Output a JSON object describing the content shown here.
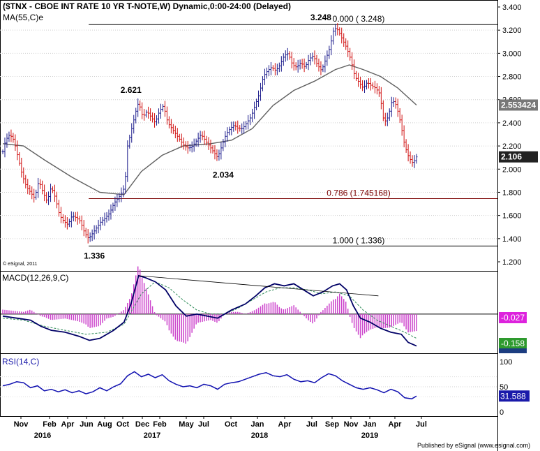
{
  "header": {
    "title": "($TNX - CBOE INT RATE 10 YR T-NOTE,W) Dynamic,0:00-24:00 (Delayed)",
    "ma_label": "MA(55,C)e",
    "copyright": "© eSignal, 2011",
    "publisher": "Published by eSignal (www.esignal.com)"
  },
  "colors": {
    "up_bar": "#1c1c8c",
    "down_bar": "#d01010",
    "ma_line": "#606060",
    "macd_line": "#000066",
    "signal_line": "#2e8b57",
    "histogram": "#cc44cc",
    "rsi_line": "#1010b0",
    "fib_line": "#7a0000",
    "price_box": "#222222",
    "macd_box": "#dd22dd",
    "signal_box": "#2e9a2e",
    "rsi_box": "#1a1aaa"
  },
  "chart_data": [
    {
      "type": "candlestick",
      "panel": "price",
      "ylim": [
        1.2,
        3.4
      ],
      "yticks": [
        "3.400",
        "3.200",
        "3.000",
        "2.800",
        "2.600",
        "2.400",
        "2.200",
        "2.000",
        "1.800",
        "1.600",
        "1.400",
        "1.200"
      ],
      "close_series": [
        [
          0,
          2.15
        ],
        [
          4,
          2.25
        ],
        [
          10,
          2.3
        ],
        [
          16,
          2.25
        ],
        [
          22,
          2.1
        ],
        [
          28,
          1.95
        ],
        [
          34,
          1.85
        ],
        [
          40,
          1.8
        ],
        [
          46,
          1.75
        ],
        [
          52,
          1.9
        ],
        [
          58,
          1.8
        ],
        [
          64,
          1.72
        ],
        [
          70,
          1.85
        ],
        [
          76,
          1.75
        ],
        [
          82,
          1.6
        ],
        [
          88,
          1.55
        ],
        [
          94,
          1.52
        ],
        [
          100,
          1.6
        ],
        [
          106,
          1.58
        ],
        [
          112,
          1.55
        ],
        [
          118,
          1.45
        ],
        [
          124,
          1.4
        ],
        [
          130,
          1.45
        ],
        [
          136,
          1.5
        ],
        [
          142,
          1.55
        ],
        [
          148,
          1.58
        ],
        [
          154,
          1.62
        ],
        [
          160,
          1.7
        ],
        [
          166,
          1.75
        ],
        [
          170,
          1.78
        ],
        [
          176,
          1.85
        ],
        [
          180,
          2.2
        ],
        [
          186,
          2.35
        ],
        [
          192,
          2.5
        ],
        [
          196,
          2.58
        ],
        [
          202,
          2.45
        ],
        [
          208,
          2.5
        ],
        [
          214,
          2.45
        ],
        [
          220,
          2.4
        ],
        [
          226,
          2.5
        ],
        [
          232,
          2.55
        ],
        [
          238,
          2.4
        ],
        [
          244,
          2.35
        ],
        [
          250,
          2.3
        ],
        [
          256,
          2.25
        ],
        [
          262,
          2.2
        ],
        [
          268,
          2.18
        ],
        [
          274,
          2.2
        ],
        [
          280,
          2.25
        ],
        [
          286,
          2.3
        ],
        [
          292,
          2.25
        ],
        [
          298,
          2.2
        ],
        [
          304,
          2.15
        ],
        [
          310,
          2.1
        ],
        [
          316,
          2.2
        ],
        [
          322,
          2.3
        ],
        [
          328,
          2.35
        ],
        [
          334,
          2.38
        ],
        [
          340,
          2.35
        ],
        [
          346,
          2.35
        ],
        [
          352,
          2.4
        ],
        [
          358,
          2.45
        ],
        [
          364,
          2.55
        ],
        [
          370,
          2.65
        ],
        [
          376,
          2.8
        ],
        [
          382,
          2.85
        ],
        [
          388,
          2.88
        ],
        [
          394,
          2.85
        ],
        [
          400,
          2.9
        ],
        [
          406,
          2.98
        ],
        [
          412,
          3.0
        ],
        [
          418,
          2.9
        ],
        [
          424,
          2.88
        ],
        [
          430,
          2.92
        ],
        [
          436,
          2.88
        ],
        [
          442,
          2.95
        ],
        [
          448,
          2.98
        ],
        [
          454,
          2.9
        ],
        [
          460,
          2.85
        ],
        [
          466,
          2.95
        ],
        [
          472,
          3.05
        ],
        [
          478,
          3.22
        ],
        [
          484,
          3.2
        ],
        [
          490,
          3.12
        ],
        [
          496,
          3.05
        ],
        [
          502,
          2.95
        ],
        [
          508,
          2.8
        ],
        [
          514,
          2.75
        ],
        [
          520,
          2.7
        ],
        [
          526,
          2.75
        ],
        [
          532,
          2.72
        ],
        [
          538,
          2.7
        ],
        [
          544,
          2.65
        ],
        [
          550,
          2.4
        ],
        [
          556,
          2.45
        ],
        [
          562,
          2.6
        ],
        [
          568,
          2.55
        ],
        [
          574,
          2.4
        ],
        [
          580,
          2.2
        ],
        [
          586,
          2.1
        ],
        [
          592,
          2.05
        ],
        [
          597,
          2.106
        ]
      ],
      "moving_average": {
        "name": "MA(55,C)e",
        "points": [
          [
            0,
            2.22
          ],
          [
            30,
            2.2
          ],
          [
            60,
            2.08
          ],
          [
            100,
            1.93
          ],
          [
            140,
            1.8
          ],
          [
            175,
            1.78
          ],
          [
            200,
            1.98
          ],
          [
            230,
            2.12
          ],
          [
            260,
            2.2
          ],
          [
            300,
            2.22
          ],
          [
            330,
            2.25
          ],
          [
            360,
            2.35
          ],
          [
            390,
            2.55
          ],
          [
            420,
            2.68
          ],
          [
            450,
            2.76
          ],
          [
            480,
            2.86
          ],
          [
            500,
            2.9
          ],
          [
            520,
            2.86
          ],
          [
            545,
            2.8
          ],
          [
            570,
            2.7
          ],
          [
            597,
            2.553424
          ]
        ]
      },
      "last_values": {
        "price": "2.106",
        "ma": "2.553424"
      },
      "annotations": [
        {
          "label": "3.248",
          "x": 459,
          "value": 3.248,
          "anchor": "above"
        },
        {
          "label": "2.621",
          "x": 185,
          "value": 2.621,
          "anchor": "above"
        },
        {
          "label": "2.034",
          "x": 318,
          "value": 2.034,
          "anchor": "below"
        },
        {
          "label": "1.336",
          "x": 132,
          "value": 1.336,
          "anchor": "below"
        }
      ],
      "fib_levels": [
        {
          "label": "0.000 ( 3.248)",
          "value": 3.248,
          "start_x": 124
        },
        {
          "label": "0.786 (1.745168)",
          "value": 1.745168,
          "start_x": 124
        },
        {
          "label": "1.000 ( 1.336)",
          "value": 1.336,
          "start_x": 124
        }
      ]
    },
    {
      "type": "line",
      "panel": "macd",
      "label": "MACD(12,26,9,C)",
      "zero_tick": "0",
      "ylim": [
        -0.18,
        0.2
      ],
      "macd": [
        [
          0,
          -0.01
        ],
        [
          20,
          -0.02
        ],
        [
          40,
          -0.03
        ],
        [
          55,
          -0.06
        ],
        [
          70,
          -0.08
        ],
        [
          90,
          -0.09
        ],
        [
          110,
          -0.11
        ],
        [
          125,
          -0.13
        ],
        [
          140,
          -0.12
        ],
        [
          160,
          -0.08
        ],
        [
          175,
          -0.04
        ],
        [
          185,
          0.05
        ],
        [
          196,
          0.19
        ],
        [
          206,
          0.18
        ],
        [
          220,
          0.16
        ],
        [
          235,
          0.12
        ],
        [
          250,
          0.04
        ],
        [
          265,
          -0.01
        ],
        [
          280,
          0.0
        ],
        [
          295,
          -0.01
        ],
        [
          310,
          -0.02
        ],
        [
          330,
          0.02
        ],
        [
          350,
          0.05
        ],
        [
          365,
          0.09
        ],
        [
          378,
          0.13
        ],
        [
          392,
          0.15
        ],
        [
          406,
          0.14
        ],
        [
          420,
          0.15
        ],
        [
          434,
          0.12
        ],
        [
          448,
          0.09
        ],
        [
          462,
          0.11
        ],
        [
          476,
          0.14
        ],
        [
          486,
          0.15
        ],
        [
          496,
          0.12
        ],
        [
          506,
          0.04
        ],
        [
          516,
          -0.02
        ],
        [
          530,
          -0.04
        ],
        [
          545,
          -0.07
        ],
        [
          560,
          -0.09
        ],
        [
          575,
          -0.1
        ],
        [
          585,
          -0.14
        ],
        [
          597,
          -0.158
        ]
      ],
      "signal": [
        [
          0,
          -0.02
        ],
        [
          30,
          -0.03
        ],
        [
          60,
          -0.06
        ],
        [
          90,
          -0.08
        ],
        [
          120,
          -0.1
        ],
        [
          150,
          -0.09
        ],
        [
          175,
          -0.05
        ],
        [
          200,
          0.1
        ],
        [
          220,
          0.16
        ],
        [
          240,
          0.13
        ],
        [
          260,
          0.07
        ],
        [
          280,
          0.02
        ],
        [
          300,
          0.0
        ],
        [
          320,
          0.0
        ],
        [
          340,
          0.03
        ],
        [
          360,
          0.07
        ],
        [
          380,
          0.11
        ],
        [
          400,
          0.13
        ],
        [
          420,
          0.13
        ],
        [
          440,
          0.12
        ],
        [
          460,
          0.1
        ],
        [
          480,
          0.11
        ],
        [
          500,
          0.09
        ],
        [
          520,
          0.02
        ],
        [
          540,
          -0.03
        ],
        [
          560,
          -0.06
        ],
        [
          580,
          -0.09
        ],
        [
          597,
          -0.12
        ]
      ],
      "trendline": [
        [
          196,
          0.19
        ],
        [
          542,
          0.09
        ]
      ],
      "last_values": {
        "histogram": "-0.027",
        "macd": "-0.158",
        "signal": "-0.1..."
      }
    },
    {
      "type": "line",
      "panel": "rsi",
      "label": "RSI(14,C)",
      "ylim": [
        0,
        100
      ],
      "yticks": [
        "100",
        "50",
        "0"
      ],
      "values": [
        [
          0,
          52
        ],
        [
          10,
          55
        ],
        [
          20,
          60
        ],
        [
          30,
          58
        ],
        [
          40,
          48
        ],
        [
          50,
          52
        ],
        [
          60,
          42
        ],
        [
          70,
          45
        ],
        [
          80,
          40
        ],
        [
          90,
          44
        ],
        [
          100,
          38
        ],
        [
          110,
          42
        ],
        [
          120,
          36
        ],
        [
          130,
          40
        ],
        [
          140,
          48
        ],
        [
          150,
          42
        ],
        [
          160,
          50
        ],
        [
          170,
          56
        ],
        [
          180,
          72
        ],
        [
          190,
          80
        ],
        [
          200,
          70
        ],
        [
          210,
          75
        ],
        [
          220,
          68
        ],
        [
          230,
          74
        ],
        [
          240,
          62
        ],
        [
          250,
          55
        ],
        [
          260,
          50
        ],
        [
          270,
          52
        ],
        [
          280,
          48
        ],
        [
          290,
          55
        ],
        [
          300,
          52
        ],
        [
          310,
          45
        ],
        [
          320,
          55
        ],
        [
          330,
          58
        ],
        [
          340,
          60
        ],
        [
          350,
          65
        ],
        [
          360,
          70
        ],
        [
          370,
          75
        ],
        [
          380,
          78
        ],
        [
          390,
          72
        ],
        [
          400,
          70
        ],
        [
          410,
          74
        ],
        [
          420,
          65
        ],
        [
          430,
          60
        ],
        [
          440,
          62
        ],
        [
          450,
          58
        ],
        [
          460,
          68
        ],
        [
          470,
          76
        ],
        [
          480,
          72
        ],
        [
          490,
          62
        ],
        [
          500,
          55
        ],
        [
          510,
          48
        ],
        [
          520,
          45
        ],
        [
          530,
          48
        ],
        [
          540,
          44
        ],
        [
          550,
          38
        ],
        [
          560,
          45
        ],
        [
          570,
          40
        ],
        [
          580,
          28
        ],
        [
          590,
          26
        ],
        [
          597,
          31.588
        ]
      ],
      "last_value": "31.588"
    }
  ],
  "x_axis": {
    "months": [
      {
        "label": "Nov",
        "x": 30
      },
      {
        "label": "Feb",
        "x": 71
      },
      {
        "label": "Apr",
        "x": 97
      },
      {
        "label": "Jun",
        "x": 124
      },
      {
        "label": "Aug",
        "x": 150
      },
      {
        "label": "Oct",
        "x": 176
      },
      {
        "label": "Dec",
        "x": 204
      },
      {
        "label": "Feb",
        "x": 229
      },
      {
        "label": "May",
        "x": 267
      },
      {
        "label": "Jul",
        "x": 292
      },
      {
        "label": "Oct",
        "x": 331
      },
      {
        "label": "Jan",
        "x": 369
      },
      {
        "label": "Apr",
        "x": 408
      },
      {
        "label": "Jul",
        "x": 447
      },
      {
        "label": "Sep",
        "x": 476
      },
      {
        "label": "Nov",
        "x": 503
      },
      {
        "label": "Jan",
        "x": 530
      },
      {
        "label": "Apr",
        "x": 566
      },
      {
        "label": "Jul",
        "x": 604
      }
    ],
    "years": [
      {
        "label": "2016",
        "x": 61
      },
      {
        "label": "2017",
        "x": 218
      },
      {
        "label": "2018",
        "x": 372
      },
      {
        "label": "2019",
        "x": 530
      }
    ]
  }
}
